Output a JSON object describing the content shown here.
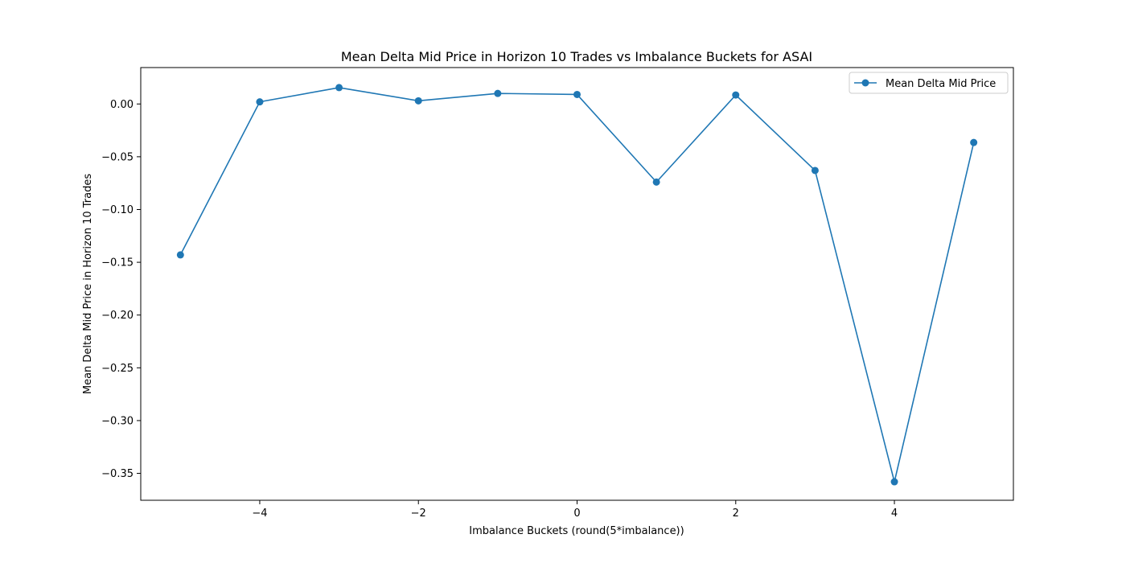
{
  "chart_data": {
    "type": "line",
    "title": "Mean Delta Mid Price in Horizon 10 Trades vs Imbalance Buckets for ASAI",
    "xlabel": "Imbalance Buckets (round(5*imbalance))",
    "ylabel": "Mean Delta Mid Price in Horizon 10 Trades",
    "x": [
      -5,
      -4,
      -3,
      -2,
      -1,
      0,
      1,
      2,
      3,
      4,
      5
    ],
    "series": [
      {
        "name": "Mean Delta Mid Price",
        "color": "#1f77b4",
        "marker": "circle",
        "values": [
          -0.143,
          0.002,
          0.0155,
          0.003,
          0.01,
          0.009,
          -0.074,
          0.0085,
          -0.063,
          -0.358,
          -0.0365
        ]
      }
    ],
    "xlim": [
      -5.5,
      5.5
    ],
    "ylim": [
      -0.3755,
      0.0345
    ],
    "xticks": [
      -4,
      -2,
      0,
      2,
      4
    ],
    "xtick_labels": [
      "−4",
      "−2",
      "0",
      "2",
      "4"
    ],
    "yticks": [
      0.0,
      -0.05,
      -0.1,
      -0.15,
      -0.2,
      -0.25,
      -0.3,
      -0.35
    ],
    "ytick_labels": [
      "0.00",
      "−0.05",
      "−0.10",
      "−0.15",
      "−0.20",
      "−0.25",
      "−0.30",
      "−0.35"
    ],
    "grid": false,
    "legend_position": "top-right"
  }
}
